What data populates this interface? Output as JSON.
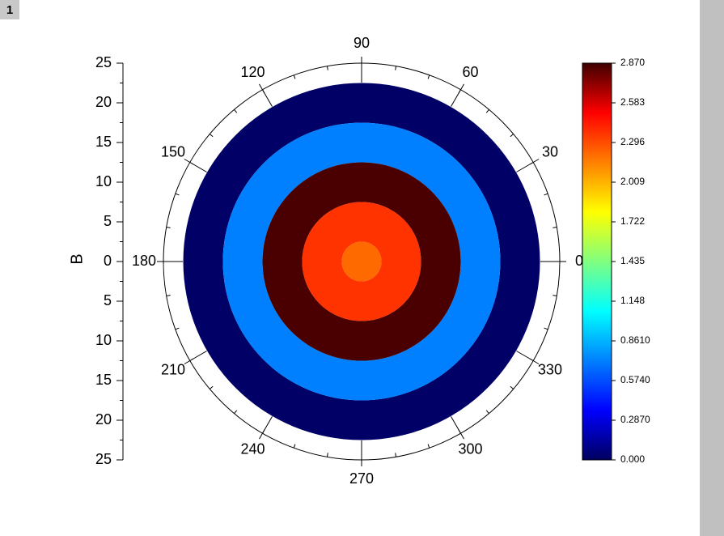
{
  "window_label": "1",
  "chart_data": {
    "type": "polar-contour",
    "ylabel": "B",
    "ylim": [
      -25,
      25
    ],
    "yticks": [
      {
        "value": -25,
        "label": "25"
      },
      {
        "value": -20,
        "label": "20"
      },
      {
        "value": -15,
        "label": "15"
      },
      {
        "value": -10,
        "label": "10"
      },
      {
        "value": -5,
        "label": "5"
      },
      0,
      5,
      10,
      15,
      20,
      25
    ],
    "angle_ticks": [
      0,
      30,
      60,
      90,
      120,
      150,
      180,
      210,
      240,
      270,
      300,
      330
    ],
    "ring_edges": [
      0,
      2.5,
      7.5,
      12.5,
      17.5,
      22.5
    ],
    "values": [
      2.2,
      2.45,
      2.87,
      0.86,
      0.05
    ],
    "colors": [
      "#ff6a00",
      "#ff3300",
      "#4a0000",
      "#0080ff",
      "#000066"
    ],
    "zlim": [
      0,
      2.87
    ],
    "zticks": [
      {
        "value": 0,
        "label": "0.000"
      },
      {
        "value": 0.287,
        "label": "0.2870"
      },
      {
        "value": 0.574,
        "label": "0.5740"
      },
      {
        "value": 0.861,
        "label": "0.8610"
      },
      1.148,
      1.435,
      1.722,
      2.009,
      2.296,
      2.583,
      {
        "value": 2.87,
        "label": "2.870"
      }
    ],
    "colormap": [
      "#000060",
      "#0000ff",
      "#0080ff",
      "#00ffff",
      "#80ff80",
      "#ffff00",
      "#ff8000",
      "#ff0000",
      "#400000"
    ]
  }
}
